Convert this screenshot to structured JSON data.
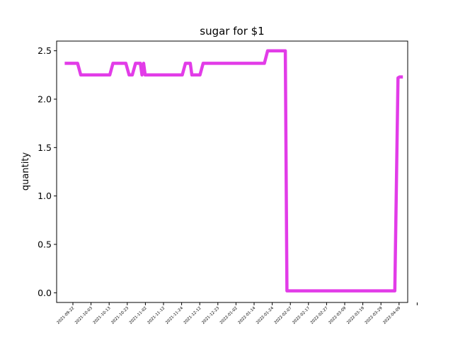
{
  "chart_data": {
    "type": "line",
    "title": "sugar for $1",
    "xlabel": "",
    "ylabel": "quantity",
    "ylim": [
      -0.1,
      2.6
    ],
    "xlim": [
      "2021-09-16",
      "2022-04-22"
    ],
    "y_ticks": [
      0.0,
      0.5,
      1.0,
      1.5,
      2.0,
      2.5
    ],
    "y_tick_labels": [
      "0.0",
      "0.5",
      "1.0",
      "1.5",
      "2.0",
      "2.5"
    ],
    "x_tick_labels": [
      "2021-09-22",
      "2021-10-03",
      "2021-10-13",
      "2021-10-23",
      "2021-11-02",
      "2021-11-12",
      "2021-11-24",
      "2021-12-12",
      "2021-12-23",
      "2022-01-02",
      "2022-01-14",
      "2022-01-24",
      "2022-02-07",
      "2022-02-17",
      "2022-02-27",
      "2022-03-09",
      "2022-03-19",
      "2022-03-29",
      "2022-04-09"
    ],
    "grid": false,
    "line_color": "#e23ce8",
    "series": [
      {
        "points": [
          [
            "2021-09-21",
            2.37
          ],
          [
            "2021-09-29",
            2.37
          ],
          [
            "2021-10-01",
            2.25
          ],
          [
            "2021-10-19",
            2.25
          ],
          [
            "2021-10-21",
            2.37
          ],
          [
            "2021-10-29",
            2.37
          ],
          [
            "2021-10-31",
            2.25
          ],
          [
            "2021-11-02",
            2.25
          ],
          [
            "2021-11-04",
            2.37
          ],
          [
            "2021-11-07",
            2.37
          ],
          [
            "2021-11-08",
            2.25
          ],
          [
            "2021-11-09",
            2.37
          ],
          [
            "2021-11-10",
            2.25
          ],
          [
            "2021-12-03",
            2.25
          ],
          [
            "2021-12-05",
            2.37
          ],
          [
            "2021-12-08",
            2.37
          ],
          [
            "2021-12-09",
            2.25
          ],
          [
            "2021-12-14",
            2.25
          ],
          [
            "2021-12-16",
            2.37
          ],
          [
            "2022-01-23",
            2.37
          ],
          [
            "2022-01-25",
            2.5
          ],
          [
            "2022-02-05",
            2.5
          ],
          [
            "2022-02-06",
            0.02
          ],
          [
            "2022-04-14",
            0.02
          ],
          [
            "2022-04-16",
            2.22
          ],
          [
            "2022-04-17",
            2.23
          ],
          [
            "2022-04-19",
            2.23
          ]
        ]
      }
    ]
  }
}
